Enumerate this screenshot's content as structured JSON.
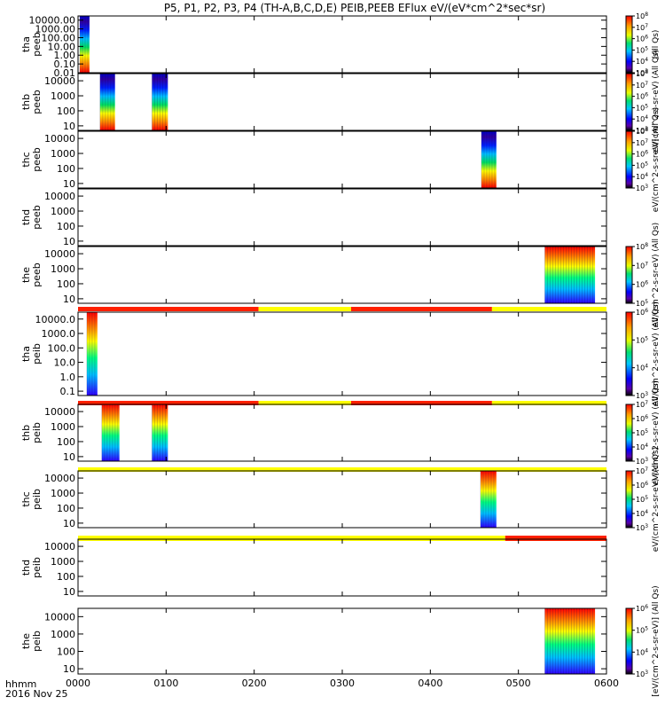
{
  "chart_data": {
    "type": "heatmap",
    "title": "P5, P1, P2, P3, P4 (TH-A,B,C,D,E) PEIB,PEEB EFlux eV/(eV*cm^2*sec*sr)",
    "xlim_hours": [
      0,
      6
    ],
    "time_ticks": [
      "0000",
      "0100",
      "0200",
      "0300",
      "0400",
      "0500",
      "0600"
    ],
    "x_title_lines": [
      "hhmm",
      "2016 Nov 25"
    ],
    "panels": [
      {
        "label": [
          "tha",
          "peeb"
        ],
        "yticks": [
          "10000.00",
          "1000.00",
          "100.00",
          "10.00",
          "1.00",
          "0.10",
          "0.01"
        ],
        "ylim": [
          0.01,
          30000
        ],
        "yscale": "log",
        "color_ticks": [
          "10^3",
          "10^4",
          "10^5",
          "10^6",
          "10^7",
          "10^8"
        ],
        "color_label": "(All Qs)",
        "blocks": [
          {
            "start": 0.02,
            "end": 0.13
          }
        ]
      },
      {
        "label": [
          "thb",
          "peeb"
        ],
        "yticks": [
          "10000",
          "1000",
          "100",
          "10"
        ],
        "ylim": [
          5,
          30000
        ],
        "yscale": "log",
        "color_ticks": [
          "10^3",
          "10^4",
          "10^5",
          "10^6",
          "10^7",
          "10^8"
        ],
        "color_label": "eV/(cm^2-s-sr-eV) (All Qs)",
        "blocks": [
          {
            "start": 0.25,
            "end": 0.42
          },
          {
            "start": 0.84,
            "end": 1.02
          }
        ]
      },
      {
        "label": [
          "thc",
          "peeb"
        ],
        "yticks": [
          "10000",
          "1000",
          "100",
          "10"
        ],
        "ylim": [
          5,
          30000
        ],
        "yscale": "log",
        "color_ticks": [
          "10^3",
          "10^4",
          "10^5",
          "10^6",
          "10^7",
          "10^8"
        ],
        "color_label": "eV/(cm^2-s-sr-eV) (All Qs)",
        "blocks": [
          {
            "start": 4.58,
            "end": 4.75
          }
        ]
      },
      {
        "label": [
          "thd",
          "peeb"
        ],
        "yticks": [
          "10000",
          "1000",
          "100",
          "10"
        ],
        "ylim": [
          5,
          30000
        ],
        "yscale": "log",
        "color_ticks": [],
        "color_label": "",
        "blocks": []
      },
      {
        "label": [
          "the",
          "peeb"
        ],
        "yticks": [
          "10000",
          "1000",
          "100",
          "10"
        ],
        "ylim": [
          5,
          30000
        ],
        "yscale": "log",
        "color_ticks": [
          "10^5",
          "10^6",
          "10^7",
          "10^8"
        ],
        "color_label": "eV/(cm^2-s-sr-eV) (All Qs)",
        "blocks": [
          {
            "start": 5.3,
            "end": 5.87
          }
        ],
        "mode_bar": [
          {
            "start": 0.0,
            "end": 0.24,
            "color": "#ff2000"
          },
          {
            "start": 0.24,
            "end": 6.0,
            "color": "#ffff00"
          }
        ]
      },
      {
        "label": [
          "tha",
          "peib"
        ],
        "yticks": [
          "10000.0",
          "1000.0",
          "100.0",
          "10.0",
          "1.0",
          "0.1"
        ],
        "ylim": [
          0.05,
          30000
        ],
        "yscale": "log",
        "color_ticks": [
          "10^3",
          "10^4",
          "10^5",
          "10^6"
        ],
        "color_label": "eV/(cm^2-s-sr-eV) (All Qs)",
        "blocks": [
          {
            "start": 0.1,
            "end": 0.22
          }
        ],
        "mode_bar": [
          {
            "start": 0.0,
            "end": 2.05,
            "color": "#ff2000"
          },
          {
            "start": 2.05,
            "end": 3.1,
            "color": "#ffff00"
          },
          {
            "start": 3.1,
            "end": 4.7,
            "color": "#ff2000"
          },
          {
            "start": 4.7,
            "end": 6.0,
            "color": "#ffff00"
          }
        ]
      },
      {
        "label": [
          "thb",
          "peib"
        ],
        "yticks": [
          "10000",
          "1000",
          "100",
          "10"
        ],
        "ylim": [
          5,
          30000
        ],
        "yscale": "log",
        "color_ticks": [
          "10^3",
          "10^4",
          "10^5",
          "10^6",
          "10^7"
        ],
        "color_label": "eV/(cm^2-s-sr-eV) (All Qs)",
        "blocks": [
          {
            "start": 0.27,
            "end": 0.47
          },
          {
            "start": 0.84,
            "end": 1.02
          }
        ],
        "mode_bar": [
          {
            "start": 0.0,
            "end": 2.05,
            "color": "#ff2000"
          },
          {
            "start": 2.05,
            "end": 3.1,
            "color": "#ffff00"
          },
          {
            "start": 3.1,
            "end": 4.7,
            "color": "#ff2000"
          },
          {
            "start": 4.7,
            "end": 6.0,
            "color": "#ffff00"
          }
        ]
      },
      {
        "label": [
          "thc",
          "peib"
        ],
        "yticks": [
          "10000",
          "1000",
          "100",
          "10"
        ],
        "ylim": [
          5,
          30000
        ],
        "yscale": "log",
        "color_ticks": [
          "10^3",
          "10^4",
          "10^5",
          "10^6",
          "10^7"
        ],
        "color_label": "eV/(cm^2-s-sr-eV) (All Qs)",
        "blocks": [
          {
            "start": 4.57,
            "end": 4.75
          }
        ],
        "mode_bar": [
          {
            "start": 0.0,
            "end": 6.0,
            "color": "#ffff00"
          }
        ]
      },
      {
        "label": [
          "thd",
          "peib"
        ],
        "yticks": [
          "10000",
          "1000",
          "100",
          "10"
        ],
        "ylim": [
          5,
          30000
        ],
        "yscale": "log",
        "color_ticks": [],
        "color_label": "",
        "blocks": [],
        "mode_bar": [
          {
            "start": 0.0,
            "end": 4.85,
            "color": "#ffff00"
          },
          {
            "start": 4.85,
            "end": 6.0,
            "color": "#ff2000"
          }
        ]
      },
      {
        "label": [
          "the",
          "peib"
        ],
        "yticks": [
          "10000",
          "1000",
          "100",
          "10"
        ],
        "ylim": [
          5,
          30000
        ],
        "yscale": "log",
        "color_ticks": [
          "10^3",
          "10^4",
          "10^5",
          "10^6"
        ],
        "color_label": "[eV/(cm^2-s-sr-eV)] (All Qs)",
        "blocks": [
          {
            "start": 5.3,
            "end": 5.87
          }
        ]
      }
    ]
  }
}
